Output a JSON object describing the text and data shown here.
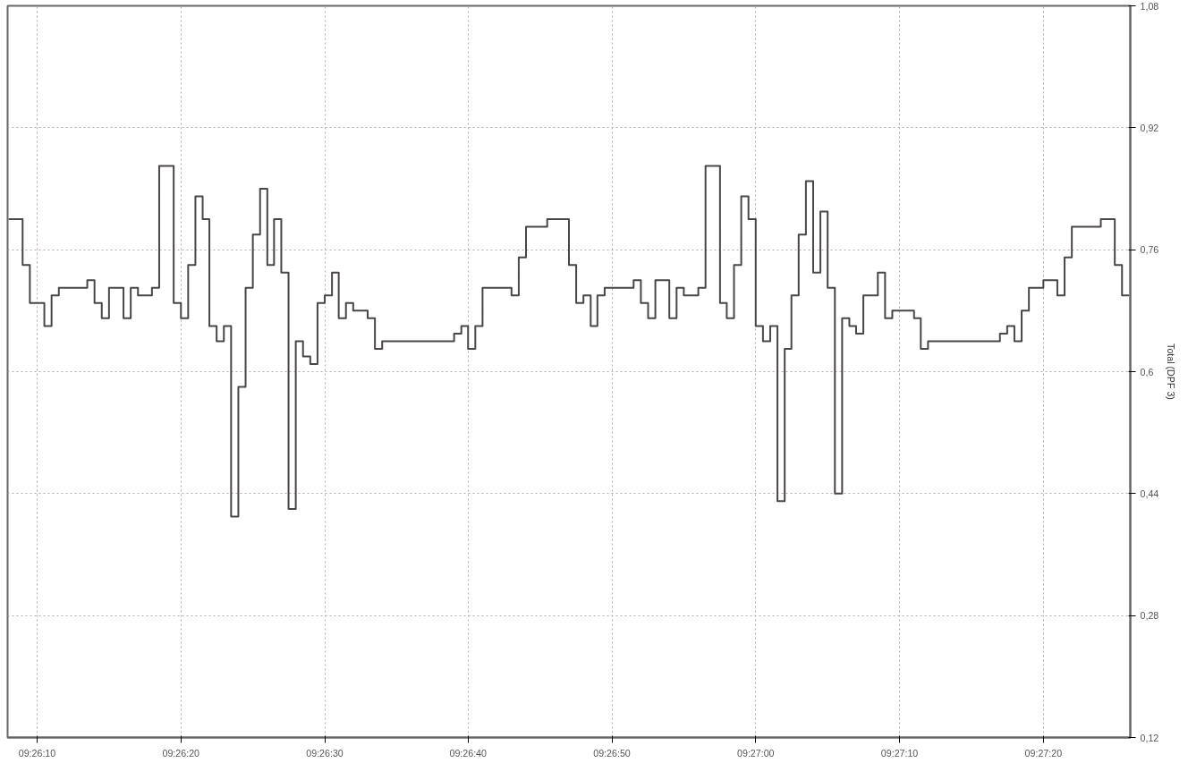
{
  "chart_data": {
    "type": "step",
    "ylabel": "Total (DPF 3)",
    "x": [
      9.43556,
      9.43583,
      9.43597,
      9.43625,
      9.43639,
      9.43653,
      9.43708,
      9.43722,
      9.43736,
      9.4375,
      9.43778,
      9.43792,
      9.43806,
      9.43833,
      9.43847,
      9.43875,
      9.43889,
      9.43903,
      9.43917,
      9.43931,
      9.43944,
      9.43958,
      9.43972,
      9.43986,
      9.44,
      9.44014,
      9.44028,
      9.44042,
      9.44056,
      9.44069,
      9.44083,
      9.44097,
      9.44111,
      9.44125,
      9.44139,
      9.44153,
      9.44167,
      9.44181,
      9.44194,
      9.44208,
      9.44222,
      9.4425,
      9.44264,
      9.44278,
      9.44417,
      9.44431,
      9.44444,
      9.44458,
      9.44472,
      9.44528,
      9.44542,
      9.44556,
      9.44597,
      9.44639,
      9.44653,
      9.44667,
      9.44681,
      9.44694,
      9.44708,
      9.44764,
      9.44778,
      9.44792,
      9.44806,
      9.44833,
      9.44847,
      9.44861,
      9.44889,
      9.44903,
      9.44931,
      9.44944,
      9.44958,
      9.44972,
      9.44986,
      9.45,
      9.45014,
      9.45028,
      9.45042,
      9.45056,
      9.45069,
      9.45083,
      9.45097,
      9.45111,
      9.45125,
      9.45139,
      9.45153,
      9.45167,
      9.45181,
      9.45194,
      9.45208,
      9.45236,
      9.4525,
      9.45264,
      9.45306,
      9.45319,
      9.45333,
      9.45472,
      9.45486,
      9.455,
      9.45514,
      9.45528,
      9.45556,
      9.45583,
      9.45597,
      9.45611,
      9.45667,
      9.45694,
      9.45708,
      9.45722
    ],
    "series": [
      {
        "color": "#4a4646",
        "values": [
          0.8,
          0.74,
          0.69,
          0.66,
          0.7,
          0.71,
          0.72,
          0.69,
          0.67,
          0.71,
          0.67,
          0.71,
          0.7,
          0.71,
          0.87,
          0.69,
          0.67,
          0.74,
          0.83,
          0.8,
          0.66,
          0.64,
          0.66,
          0.41,
          0.58,
          0.71,
          0.78,
          0.84,
          0.74,
          0.8,
          0.73,
          0.42,
          0.64,
          0.62,
          0.61,
          0.69,
          0.7,
          0.73,
          0.67,
          0.69,
          0.68,
          0.67,
          0.63,
          0.64,
          0.65,
          0.66,
          0.63,
          0.66,
          0.71,
          0.7,
          0.75,
          0.79,
          0.8,
          0.74,
          0.69,
          0.7,
          0.66,
          0.7,
          0.71,
          0.72,
          0.69,
          0.67,
          0.72,
          0.67,
          0.71,
          0.7,
          0.71,
          0.87,
          0.69,
          0.67,
          0.74,
          0.83,
          0.8,
          0.66,
          0.64,
          0.66,
          0.43,
          0.63,
          0.7,
          0.78,
          0.85,
          0.73,
          0.81,
          0.71,
          0.44,
          0.67,
          0.66,
          0.65,
          0.7,
          0.73,
          0.67,
          0.68,
          0.67,
          0.63,
          0.64,
          0.65,
          0.66,
          0.64,
          0.68,
          0.71,
          0.72,
          0.7,
          0.75,
          0.79,
          0.8,
          0.74,
          0.7,
          0.7
        ]
      }
    ],
    "xlim": [
      9.43554,
      9.45724
    ],
    "xticks": [
      {
        "value": 9.43611,
        "label": "09:26:10"
      },
      {
        "value": 9.43889,
        "label": "09:26:20"
      },
      {
        "value": 9.44167,
        "label": "09:26:30"
      },
      {
        "value": 9.44444,
        "label": "09:26:40"
      },
      {
        "value": 9.44722,
        "label": "09:26:50"
      },
      {
        "value": 9.45,
        "label": "09:27:00"
      },
      {
        "value": 9.45278,
        "label": "09:27:10"
      },
      {
        "value": 9.45556,
        "label": "09:27:20"
      }
    ],
    "ylim": [
      0.12,
      1.08
    ],
    "yticks": [
      {
        "value": 0.12,
        "label": "0,12"
      },
      {
        "value": 0.28,
        "label": "0,28"
      },
      {
        "value": 0.44,
        "label": "0,44"
      },
      {
        "value": 0.6,
        "label": "0,6"
      },
      {
        "value": 0.76,
        "label": "0,76"
      },
      {
        "value": 0.92,
        "label": "0,92"
      },
      {
        "value": 1.08,
        "label": "1,08"
      }
    ],
    "grid": true,
    "line_style": "solid",
    "marker": "none"
  }
}
